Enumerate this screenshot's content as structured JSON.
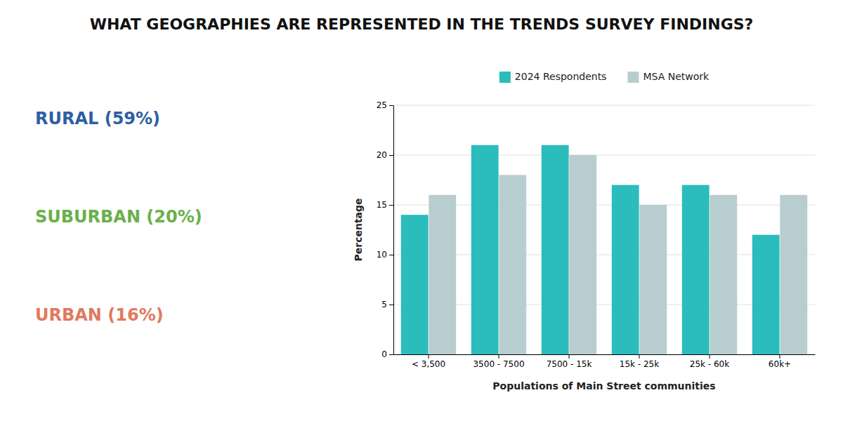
{
  "chart_data": {
    "type": "bar",
    "title": "WHAT GEOGRAPHIES ARE REPRESENTED IN THE TRENDS SURVEY FINDINGS?",
    "annotations": [
      {
        "text": "RURAL (59%)",
        "color": "#2E5FA3"
      },
      {
        "text": "SUBURBAN (20%)",
        "color": "#6AB04C"
      },
      {
        "text": "URBAN (16%)",
        "color": "#E07A5F"
      }
    ],
    "xlabel": "Populations of Main Street communities",
    "ylabel": "Percentage",
    "categories": [
      "< 3,500",
      "3500 - 7500",
      "7500 - 15k",
      "15k - 25k",
      "25k - 60k",
      "60k+"
    ],
    "series": [
      {
        "name": "2024 Respondents",
        "color": "#2BBCBC",
        "values": [
          14,
          21,
          21,
          17,
          17,
          12
        ]
      },
      {
        "name": "MSA Network",
        "color": "#B8CDD0",
        "values": [
          16,
          18,
          20,
          15,
          16,
          16
        ]
      }
    ],
    "ylim": [
      0,
      25
    ],
    "yticks": [
      0,
      5,
      10,
      15,
      20,
      25
    ],
    "grid": true,
    "legend": "top"
  }
}
